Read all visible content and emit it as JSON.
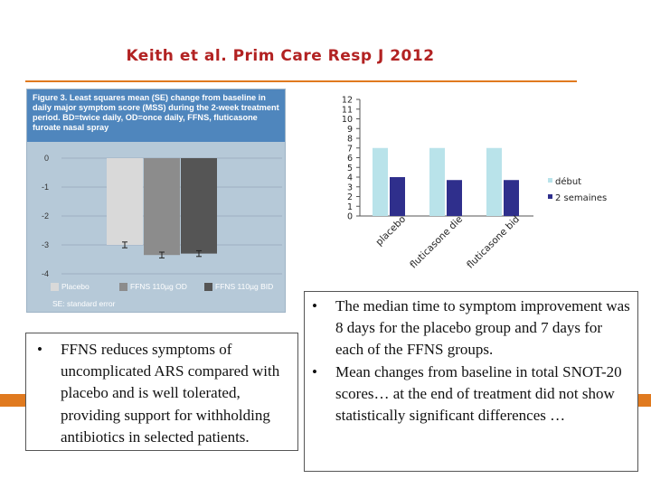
{
  "slide": {
    "title": "Keith et al. Prim Care Resp J 2012"
  },
  "figure": {
    "caption": "Figure 3.  Least squares mean (SE) change from baseline in daily major symptom score (MSS) during the 2-week treatment period. BD=twice daily, OD=once daily, FFNS, fluticasone furoate nasal spray",
    "y_ticks": [
      "0",
      "-1",
      "-2",
      "-3",
      "-4"
    ],
    "legend": [
      "Placebo",
      "FFNS 110µg OD",
      "FFNS 110µg BID"
    ],
    "se_note": "SE: standard error",
    "colors": [
      "#d9d9d9",
      "#8c8c8c",
      "#555555"
    ],
    "chart_data": {
      "type": "bar",
      "categories": [
        "Placebo",
        "FFNS 110µg OD",
        "FFNS 110µg BID"
      ],
      "values": [
        -3.0,
        -3.35,
        -3.3
      ],
      "errors": [
        0.1,
        0.1,
        0.1
      ],
      "ylim": [
        -4,
        0
      ],
      "grid": true
    }
  },
  "mini_chart": {
    "y_ticks": [
      "12",
      "11",
      "10",
      "9",
      "8",
      "7",
      "6",
      "5",
      "4",
      "3",
      "2",
      "1",
      "0"
    ],
    "categories": [
      "placebo",
      "fluticasone die",
      "fluticasone bid"
    ],
    "legend": [
      "début",
      "2 semaines"
    ],
    "colors": {
      "debut": "#b9e3ea",
      "two_weeks": "#2f2f8c"
    },
    "chart_data": {
      "type": "bar",
      "categories": [
        "placebo",
        "fluticasone die",
        "fluticasone bid"
      ],
      "series": [
        {
          "name": "début",
          "values": [
            7,
            7,
            7
          ]
        },
        {
          "name": "2 semaines",
          "values": [
            4,
            3.7,
            3.7
          ]
        }
      ],
      "ylim": [
        0,
        12
      ]
    }
  },
  "text_left": {
    "bullets": [
      "FFNS reduces symptoms of uncomplicated ARS compared with placebo and is well tolerated, providing support for withholding antibiotics in selected patients."
    ]
  },
  "text_right": {
    "bullets": [
      "The median time to symptom improvement was 8 days for the placebo group and 7 days for each of the FFNS groups.",
      "Mean changes from baseline in total SNOT-20 scores… at the end of treatment did not show statistically significant differences …"
    ]
  },
  "bullet_char": "•"
}
